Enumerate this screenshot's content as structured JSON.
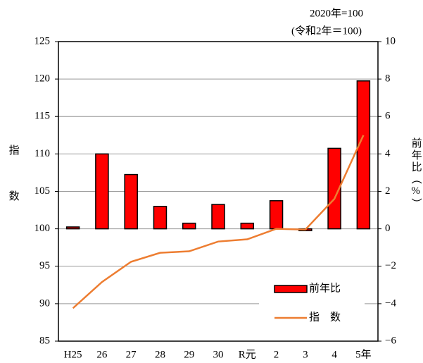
{
  "chart_data": {
    "type": "bar",
    "annotations": [
      "2020年=100",
      "(令和2年＝100)"
    ],
    "ylabel": "指数",
    "y2label": "前年比（%）",
    "categories": [
      "H25",
      "26",
      "27",
      "28",
      "29",
      "30",
      "R元",
      "2",
      "3",
      "4",
      "5年"
    ],
    "series": [
      {
        "name": "前年比",
        "type": "bar",
        "axis": "y2",
        "color": "#ff0000",
        "values": [
          0.1,
          4.0,
          2.9,
          1.2,
          0.3,
          1.3,
          0.3,
          1.5,
          -0.1,
          4.3,
          7.9
        ]
      },
      {
        "name": "指　数",
        "type": "line",
        "color": "#ed7d31",
        "values": [
          89.4,
          92.9,
          95.6,
          96.8,
          97.0,
          98.3,
          98.6,
          100.0,
          99.9,
          104.0,
          112.5
        ]
      }
    ],
    "ylim": [
      85,
      125
    ],
    "yticks": [
      85,
      90,
      95,
      100,
      105,
      110,
      115,
      120,
      125
    ],
    "y2lim": [
      -6,
      10
    ],
    "y2ticks": [
      {
        "value": -6,
        "label": "−6"
      },
      {
        "value": -4,
        "label": "−4"
      },
      {
        "value": -2,
        "label": "−2"
      },
      0,
      2,
      4,
      6,
      8,
      10
    ],
    "grid": true,
    "legend": "lower right"
  }
}
